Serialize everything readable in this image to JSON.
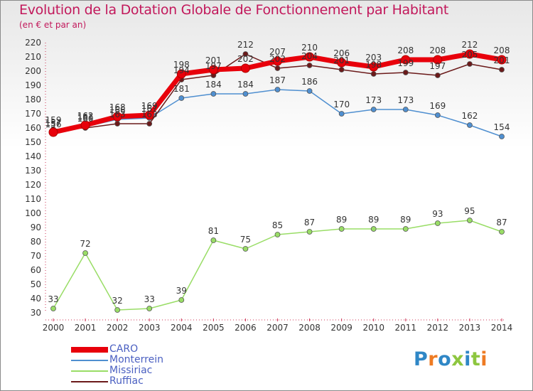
{
  "header": {
    "title": "Evolution de la Dotation Globale de Fonctionnement par Habitant",
    "subtitle": "(en € et par an)"
  },
  "colors": {
    "CARO": "#e8000b",
    "Monterrein": "#4f8fd0",
    "Missiriac": "#99dd66",
    "Ruffiac": "#6b1a1a"
  },
  "logo": {
    "text": "Proxiti",
    "colors": [
      "#2f87c6",
      "#ee7b23",
      "#2f87c6",
      "#8dc63f",
      "#2f87c6",
      "#8dc63f",
      "#ee7b23"
    ]
  },
  "chart_data": {
    "type": "line",
    "title": "Evolution de la Dotation Globale de Fonctionnement par Habitant",
    "subtitle": "(en € et par an)",
    "xlabel": "",
    "ylabel": "",
    "x": [
      2000,
      2001,
      2002,
      2003,
      2004,
      2005,
      2006,
      2007,
      2008,
      2009,
      2010,
      2011,
      2012,
      2013,
      2014
    ],
    "ylim": [
      30,
      220
    ],
    "yticks": [
      30,
      40,
      50,
      60,
      70,
      80,
      90,
      100,
      110,
      120,
      130,
      140,
      150,
      160,
      170,
      180,
      190,
      200,
      210,
      220
    ],
    "grid": false,
    "legend": "bottom-left",
    "series": [
      {
        "name": "CARO",
        "values": [
          157,
          162,
          168,
          169,
          198,
          201,
          202,
          207,
          210,
          206,
          203,
          208,
          208,
          212,
          208
        ]
      },
      {
        "name": "Monterrein",
        "values": [
          156,
          161,
          166,
          167,
          181,
          184,
          184,
          187,
          186,
          170,
          173,
          173,
          169,
          162,
          154
        ]
      },
      {
        "name": "Missiriac",
        "values": [
          33,
          72,
          32,
          33,
          39,
          81,
          75,
          85,
          87,
          89,
          89,
          89,
          93,
          95,
          87
        ]
      },
      {
        "name": "Ruffiac",
        "values": [
          159,
          160,
          163,
          163,
          194,
          197,
          212,
          202,
          204,
          201,
          198,
          199,
          197,
          205,
          201
        ]
      }
    ]
  }
}
